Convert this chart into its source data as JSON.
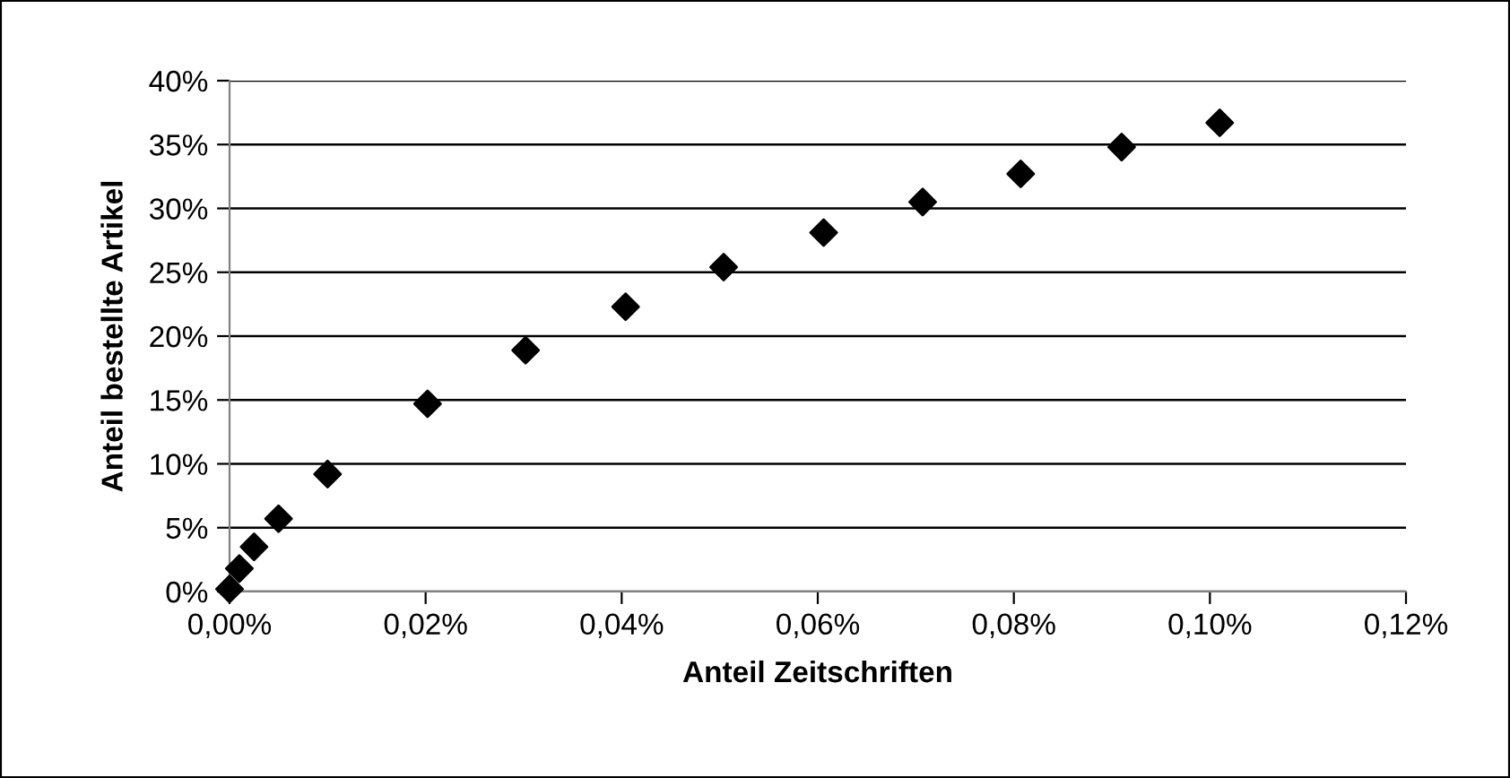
{
  "chart_data": {
    "type": "scatter",
    "xlabel": "Anteil Zeitschriften",
    "ylabel": "Anteil bestellte Artikel",
    "x": [
      0,
      0.001,
      0.0025,
      0.005,
      0.01,
      0.0202,
      0.0302,
      0.0404,
      0.0504,
      0.0606,
      0.0707,
      0.0807,
      0.091,
      0.101
    ],
    "series": [
      {
        "color": "#000000",
        "values": [
          0.2,
          1.8,
          3.5,
          5.7,
          9.2,
          14.7,
          18.9,
          22.3,
          25.4,
          28.1,
          30.5,
          32.7,
          34.8,
          36.7
        ]
      }
    ],
    "marker": "diamond",
    "grid": "y",
    "xlim": [
      0,
      0.12
    ],
    "xticks": [
      {
        "value": 0,
        "label": "0,00%"
      },
      {
        "value": 0.02,
        "label": "0,02%"
      },
      {
        "value": 0.04,
        "label": "0,04%"
      },
      {
        "value": 0.06,
        "label": "0,06%"
      },
      {
        "value": 0.08,
        "label": "0,08%"
      },
      {
        "value": 0.1,
        "label": "0,10%"
      },
      {
        "value": 0.12,
        "label": "0,12%"
      }
    ],
    "ylim": [
      0,
      40
    ],
    "yticks": [
      {
        "value": 0,
        "label": "0%"
      },
      {
        "value": 5,
        "label": "5%"
      },
      {
        "value": 10,
        "label": "10%"
      },
      {
        "value": 15,
        "label": "15%"
      },
      {
        "value": 20,
        "label": "20%"
      },
      {
        "value": 25,
        "label": "25%"
      },
      {
        "value": 30,
        "label": "30%"
      },
      {
        "value": 35,
        "label": "35%"
      },
      {
        "value": 40,
        "label": "40%"
      }
    ]
  }
}
